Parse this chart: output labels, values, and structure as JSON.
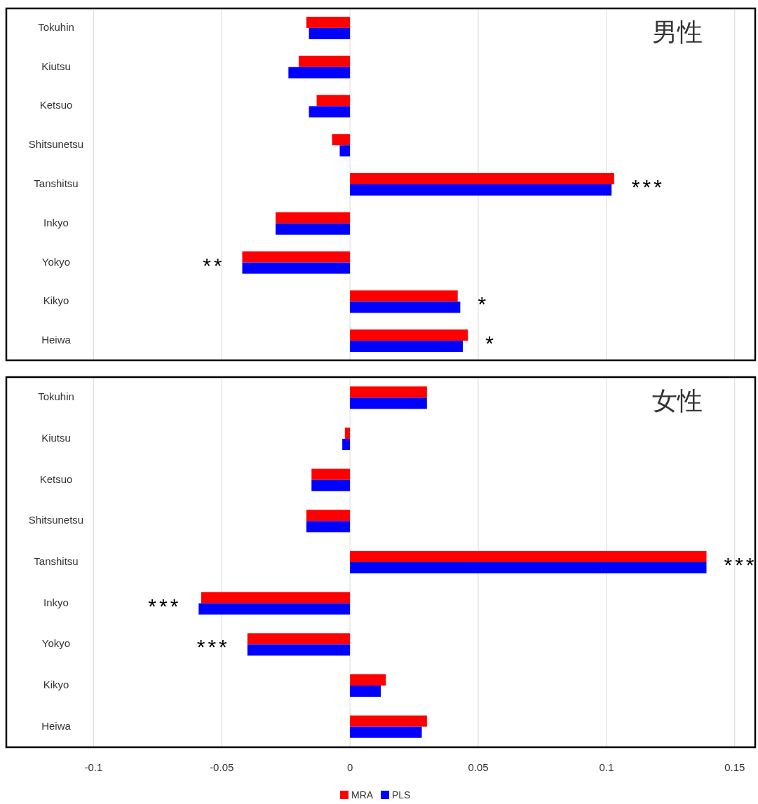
{
  "chart_data": [
    {
      "type": "bar",
      "orientation": "horizontal",
      "title": "男性",
      "categories": [
        "Tokuhin",
        "Kiutsu",
        "Ketsuo",
        "Shitsunetsu",
        "Tanshitsu",
        "Inkyo",
        "Yokyo",
        "Kikyo",
        "Heiwa"
      ],
      "series": [
        {
          "color": "#ff0000",
          "values": [
            -0.017,
            -0.02,
            -0.013,
            -0.007,
            0.103,
            -0.029,
            -0.042,
            0.042,
            0.046
          ]
        },
        {
          "color": "#0000ff",
          "values": [
            -0.016,
            -0.024,
            -0.016,
            -0.004,
            0.102,
            -0.029,
            -0.042,
            0.043,
            0.044
          ]
        }
      ],
      "xlim": [
        -0.134,
        0.158
      ],
      "xticks": [
        -0.1,
        -0.05,
        0,
        0.05,
        0.1,
        0.15
      ],
      "grid": "x",
      "tick_labels": "y",
      "legend": false,
      "annotations": [
        {
          "text": "***",
          "x": 0.103,
          "y": "Tanshitsu"
        },
        {
          "text": "**",
          "x": -0.042,
          "y": "Yokyo"
        },
        {
          "text": "*",
          "x": 0.043,
          "y": "Kikyo"
        },
        {
          "text": "*",
          "x": 0.046,
          "y": "Heiwa"
        }
      ]
    },
    {
      "type": "bar",
      "orientation": "horizontal",
      "title": "女性",
      "categories": [
        "Tokuhin",
        "Kiutsu",
        "Ketsuo",
        "Shitsunetsu",
        "Tanshitsu",
        "Inkyo",
        "Yokyo",
        "Kikyo",
        "Heiwa"
      ],
      "series": [
        {
          "name": "MRA",
          "color": "#ff0000",
          "values": [
            0.03,
            -0.002,
            -0.015,
            -0.017,
            0.139,
            -0.058,
            -0.04,
            0.014,
            0.03
          ]
        },
        {
          "name": "PLS",
          "color": "#0000ff",
          "values": [
            0.03,
            -0.003,
            -0.015,
            -0.017,
            0.139,
            -0.059,
            -0.04,
            0.012,
            0.028
          ]
        }
      ],
      "xlim": [
        -0.134,
        0.158
      ],
      "xticks": [
        -0.1,
        -0.05,
        0,
        0.05,
        0.1,
        0.15
      ],
      "grid": "x",
      "legend": "bottom",
      "annotations": [
        {
          "text": "***",
          "x": 0.139,
          "y": "Tanshitsu"
        },
        {
          "text": "***",
          "x": -0.059,
          "y": "Inkyo"
        },
        {
          "text": "***",
          "x": -0.04,
          "y": "Yokyo"
        }
      ]
    }
  ]
}
